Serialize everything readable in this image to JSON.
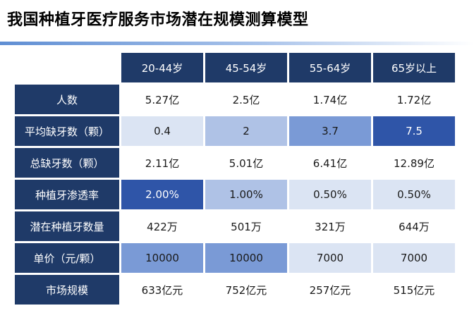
{
  "title": "我国种植牙医疗服务市场潜在规模测算模型",
  "columns": [
    "20-44岁",
    "45-54岁",
    "55-64岁",
    "65岁以上"
  ],
  "rows": [
    {
      "label": "人数",
      "values": [
        "5.27亿",
        "2.5亿",
        "1.74亿",
        "1.72亿"
      ],
      "shades": [
        0,
        0,
        0,
        0
      ]
    },
    {
      "label": "平均缺牙数（颗）",
      "values": [
        "0.4",
        "2",
        "3.7",
        "7.5"
      ],
      "shades": [
        1,
        2,
        3,
        4
      ]
    },
    {
      "label": "总缺牙数（颗）",
      "values": [
        "2.11亿",
        "5.01亿",
        "6.41亿",
        "12.89亿"
      ],
      "shades": [
        0,
        0,
        0,
        0
      ]
    },
    {
      "label": "种植牙渗透率",
      "values": [
        "2.00%",
        "1.00%",
        "0.50%",
        "0.50%"
      ],
      "shades": [
        4,
        2,
        1,
        1
      ]
    },
    {
      "label": "潜在种植牙数量",
      "values": [
        "422万",
        "501万",
        "321万",
        "644万"
      ],
      "shades": [
        0,
        0,
        0,
        0
      ]
    },
    {
      "label": "单价（元/颗）",
      "values": [
        "10000",
        "10000",
        "7000",
        "7000"
      ],
      "shades": [
        3,
        3,
        1,
        1
      ]
    },
    {
      "label": "市场规模",
      "values": [
        "633亿元",
        "752亿元",
        "257亿元",
        "515亿元"
      ],
      "shades": [
        0,
        0,
        0,
        0
      ]
    }
  ],
  "colors": {
    "header_bg": "#1f3a68",
    "accent_bar": "#5f8ed3",
    "shade_levels": [
      "#ffffff",
      "#dbe4f3",
      "#afc2e6",
      "#7a9ad6",
      "#2f55a8"
    ]
  }
}
